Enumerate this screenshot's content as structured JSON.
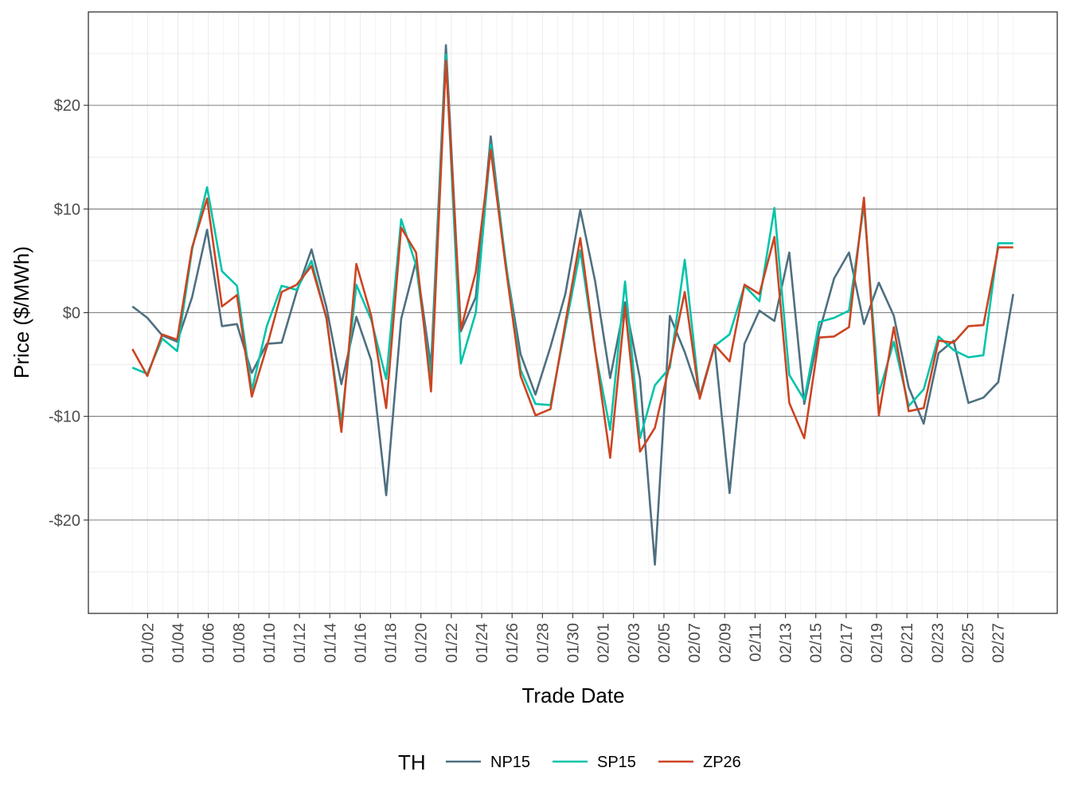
{
  "chart_data": {
    "type": "line",
    "xlabel": "Trade Date",
    "ylabel": "Price ($/MWh)",
    "year": "2024",
    "xlim": [
      "2024-01-01",
      "2024-02-28"
    ],
    "ylim": [
      -29,
      29
    ],
    "y_ticks": [
      -20,
      -10,
      0,
      10,
      20
    ],
    "y_tick_labels": [
      "-$20",
      "-$10",
      "$0",
      "$10",
      "$20"
    ],
    "x_tick_labels": [
      "01/02",
      "01/04",
      "01/06",
      "01/08",
      "01/10",
      "01/12",
      "01/14",
      "01/16",
      "01/18",
      "01/20",
      "01/22",
      "01/24",
      "01/26",
      "01/28",
      "01/30",
      "02/01",
      "02/03",
      "02/05",
      "02/07",
      "02/09",
      "02/11",
      "02/13",
      "02/15",
      "02/17",
      "02/19",
      "02/21",
      "02/23",
      "02/25",
      "02/27"
    ],
    "grid": true,
    "legend": {
      "title": "TH",
      "position": "bottom"
    },
    "series": [
      {
        "name": "NP15",
        "color": "#4e7080",
        "values": [
          0.6,
          -0.5,
          -2.2,
          -2.8,
          1.5,
          8.0,
          -1.3,
          -1.1,
          -5.8,
          -3.0,
          -2.9,
          2.0,
          6.1,
          0.5,
          -6.9,
          -0.4,
          -4.6,
          -17.6,
          -0.6,
          5.0,
          -5.2,
          25.8,
          -1.8,
          1.5,
          17.0,
          4.7,
          -4.0,
          -7.9,
          -3.3,
          1.8,
          9.9,
          3.0,
          -6.3,
          1.0,
          -6.4,
          -24.3,
          -0.3,
          -3.8,
          -8.1,
          -3.1,
          -17.4,
          -3.0,
          0.2,
          -0.8,
          5.8,
          -8.8,
          -1.9,
          3.3,
          5.8,
          -1.1,
          2.9,
          -0.3,
          -7.2,
          -10.7,
          -3.9,
          -2.7,
          -8.7,
          -8.2,
          -6.7,
          1.8
        ]
      },
      {
        "name": "SP15",
        "color": "#00c4aa",
        "values": [
          -5.3,
          -5.9,
          -2.5,
          -3.7,
          6.1,
          12.1,
          4.0,
          2.6,
          -7.5,
          -1.3,
          2.6,
          2.2,
          5.0,
          -0.6,
          -10.6,
          2.7,
          -0.7,
          -6.4,
          9.0,
          4.6,
          -6.3,
          24.9,
          -4.9,
          0.0,
          16.2,
          5.0,
          -5.5,
          -8.8,
          -8.9,
          -1.5,
          6.0,
          -3.7,
          -11.3,
          3.0,
          -12.1,
          -7.0,
          -5.3,
          5.1,
          -8.2,
          -3.2,
          -2.1,
          2.6,
          1.1,
          10.1,
          -6.0,
          -8.4,
          -0.9,
          -0.5,
          0.2,
          10.4,
          -7.8,
          -2.8,
          -9.0,
          -7.4,
          -2.3,
          -3.6,
          -4.3,
          -4.1,
          6.7,
          6.7
        ]
      },
      {
        "name": "ZP26",
        "color": "#cc4422",
        "values": [
          -3.5,
          -6.1,
          -2.1,
          -2.6,
          6.3,
          11.0,
          0.6,
          1.7,
          -8.1,
          -3.3,
          2.0,
          2.7,
          4.5,
          -0.5,
          -11.5,
          4.7,
          -0.3,
          -9.2,
          8.2,
          5.8,
          -7.6,
          24.3,
          -1.6,
          3.9,
          15.7,
          4.5,
          -6.1,
          -9.9,
          -9.3,
          -1.0,
          7.2,
          -3.6,
          -14.0,
          0.6,
          -13.4,
          -11.1,
          -4.9,
          2.0,
          -8.3,
          -3.1,
          -4.7,
          2.7,
          1.8,
          7.3,
          -8.7,
          -12.1,
          -2.4,
          -2.3,
          -1.4,
          11.1,
          -9.9,
          -1.4,
          -9.5,
          -9.2,
          -2.7,
          -2.9,
          -1.3,
          -1.2,
          6.3,
          6.3
        ]
      }
    ]
  }
}
